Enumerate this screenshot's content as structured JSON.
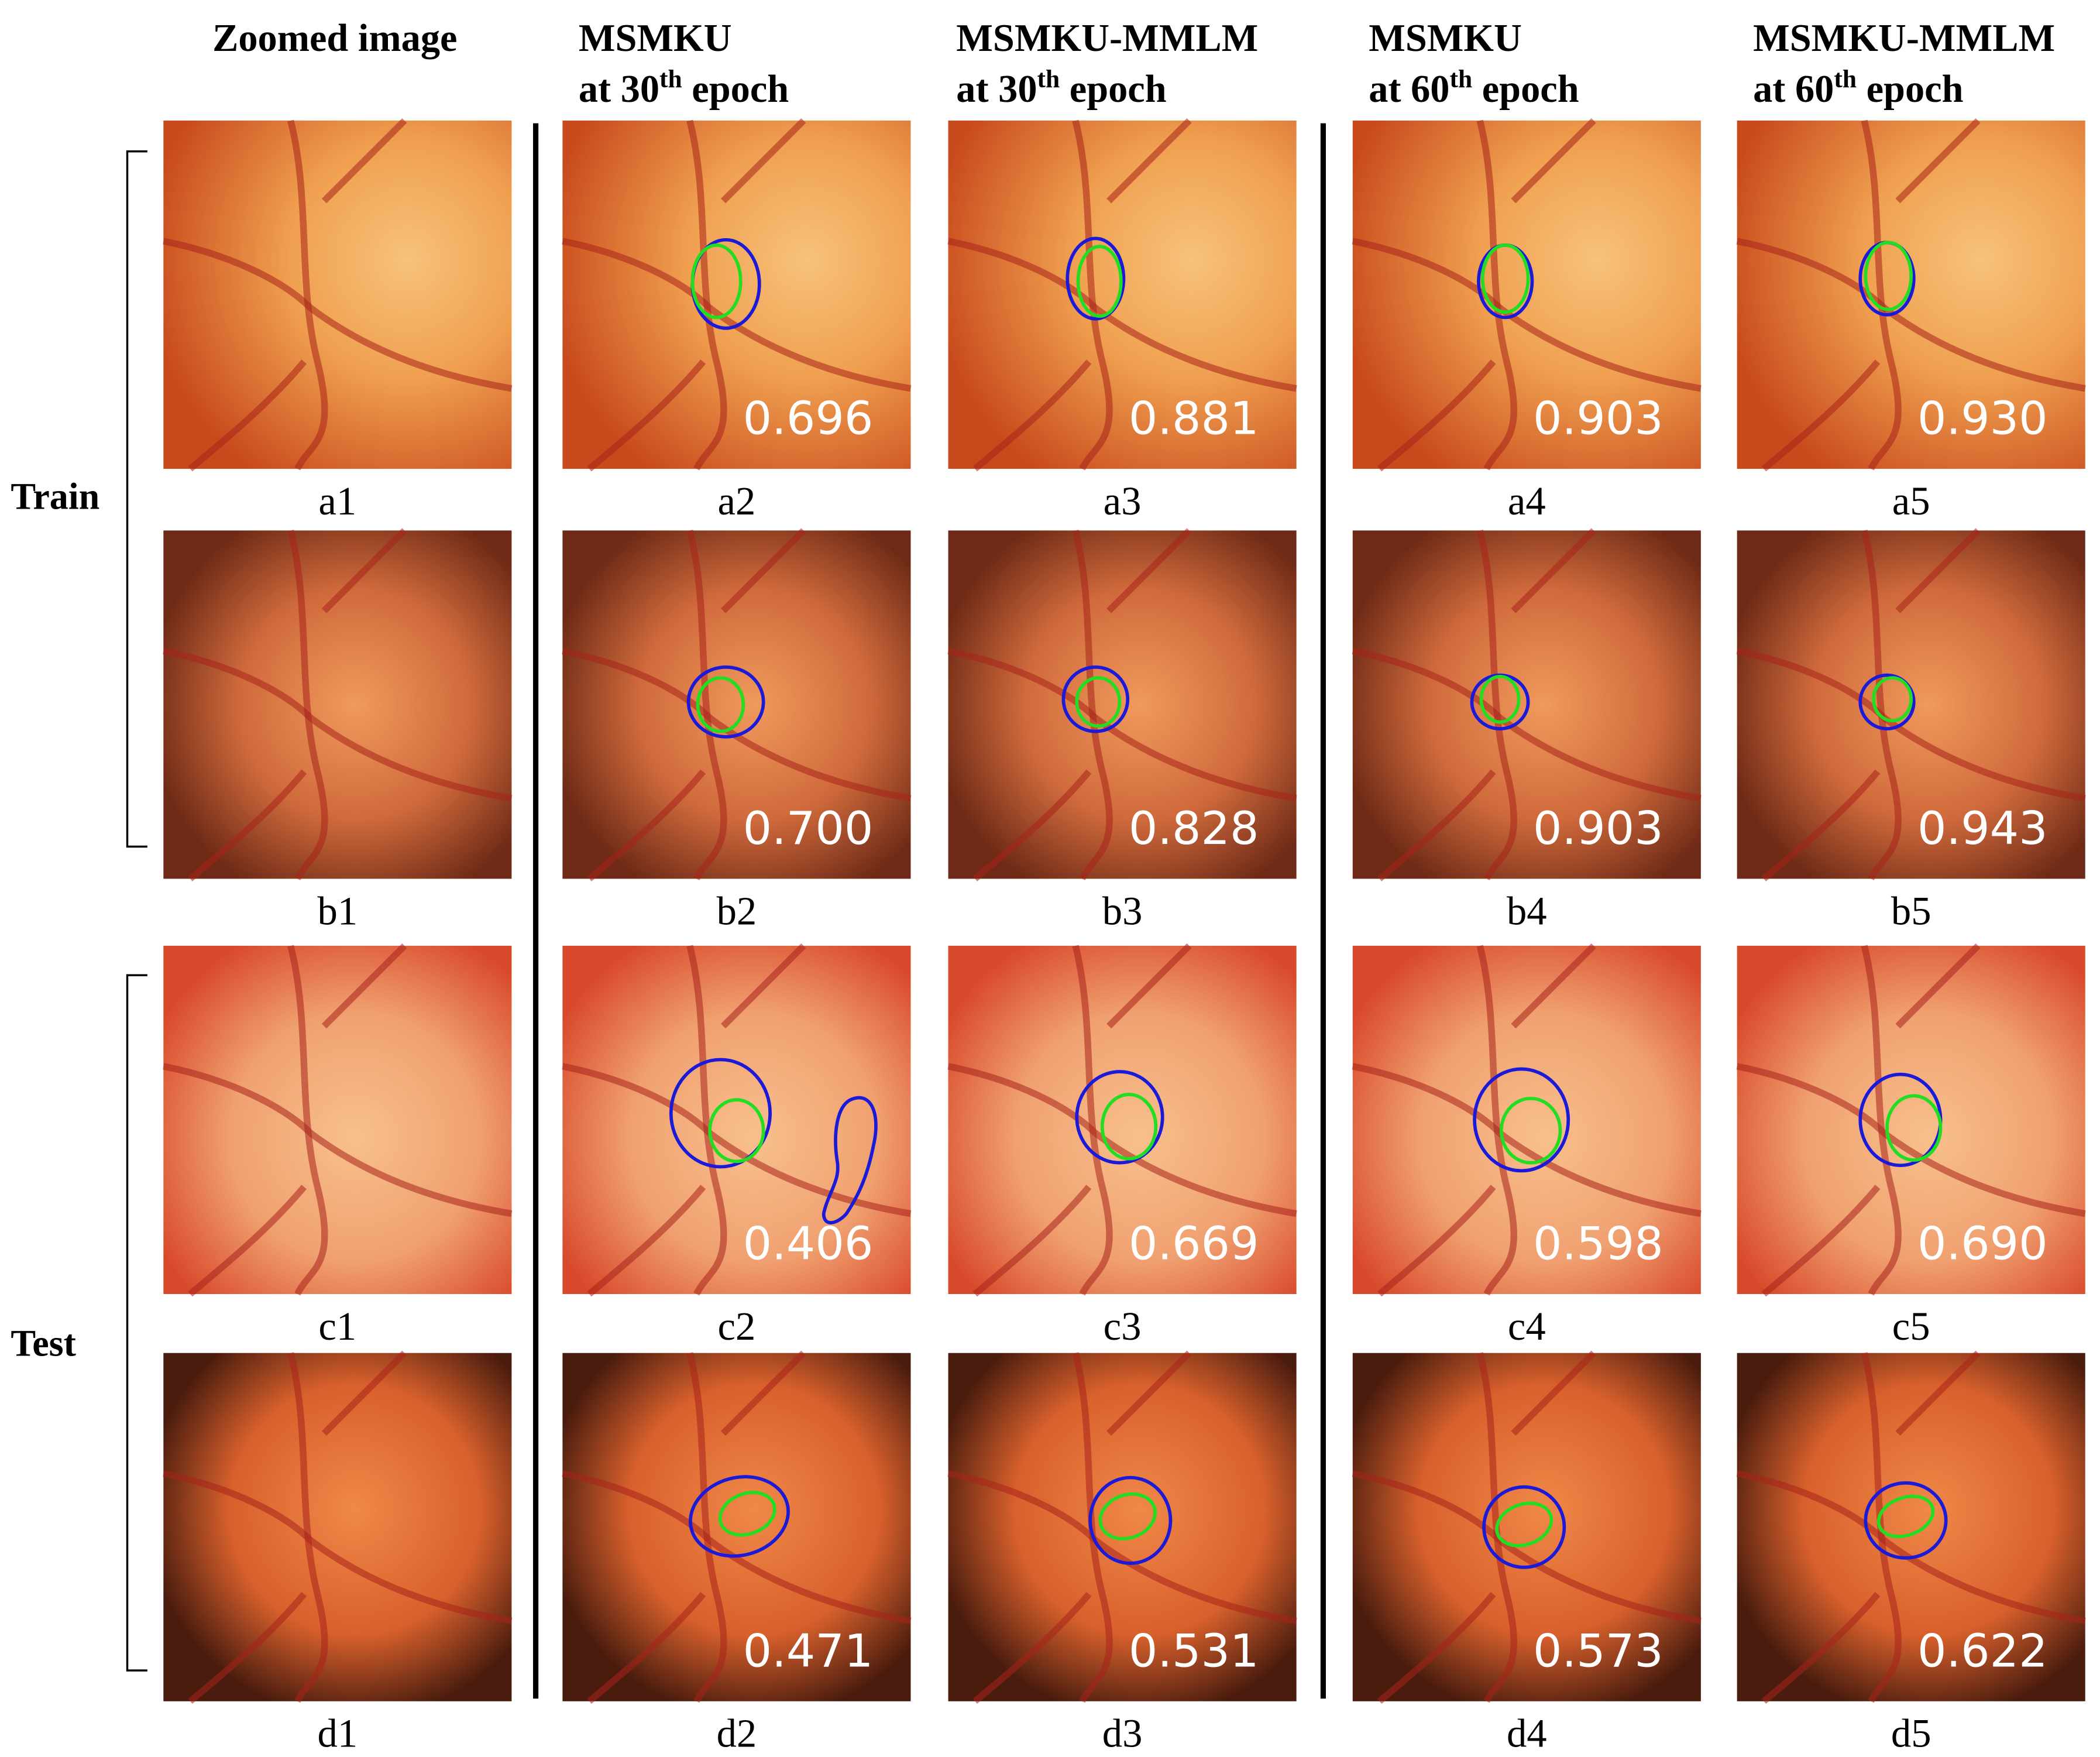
{
  "columns": [
    {
      "name": "Zoomed image"
    },
    {
      "name": "MSMKU",
      "epoch_prefix": "at 30",
      "sup": "th",
      "epoch_suffix": "epoch"
    },
    {
      "name": "MSMKU-MMLM",
      "epoch_prefix": "at 30",
      "sup": "th",
      "epoch_suffix": "epoch"
    },
    {
      "name": "MSMKU",
      "epoch_prefix": "at 60",
      "sup": "th",
      "epoch_suffix": "epoch"
    },
    {
      "name": "MSMKU-MMLM",
      "epoch_prefix": "at 60",
      "sup": "th",
      "epoch_suffix": "epoch"
    }
  ],
  "groups": [
    "Train",
    "Test"
  ],
  "rows": [
    {
      "cells": [
        {
          "caption": "a1"
        },
        {
          "caption": "a2",
          "score": "0.696"
        },
        {
          "caption": "a3",
          "score": "0.881"
        },
        {
          "caption": "a4",
          "score": "0.903"
        },
        {
          "caption": "a5",
          "score": "0.930"
        }
      ]
    },
    {
      "cells": [
        {
          "caption": "b1"
        },
        {
          "caption": "b2",
          "score": "0.700"
        },
        {
          "caption": "b3",
          "score": "0.828"
        },
        {
          "caption": "b4",
          "score": "0.903"
        },
        {
          "caption": "b5",
          "score": "0.943"
        }
      ]
    },
    {
      "cells": [
        {
          "caption": "c1"
        },
        {
          "caption": "c2",
          "score": "0.406"
        },
        {
          "caption": "c3",
          "score": "0.669"
        },
        {
          "caption": "c4",
          "score": "0.598"
        },
        {
          "caption": "c5",
          "score": "0.690"
        }
      ]
    },
    {
      "cells": [
        {
          "caption": "d1"
        },
        {
          "caption": "d2",
          "score": "0.471"
        },
        {
          "caption": "d3",
          "score": "0.531"
        },
        {
          "caption": "d4",
          "score": "0.573"
        },
        {
          "caption": "d5",
          "score": "0.622"
        }
      ]
    }
  ]
}
